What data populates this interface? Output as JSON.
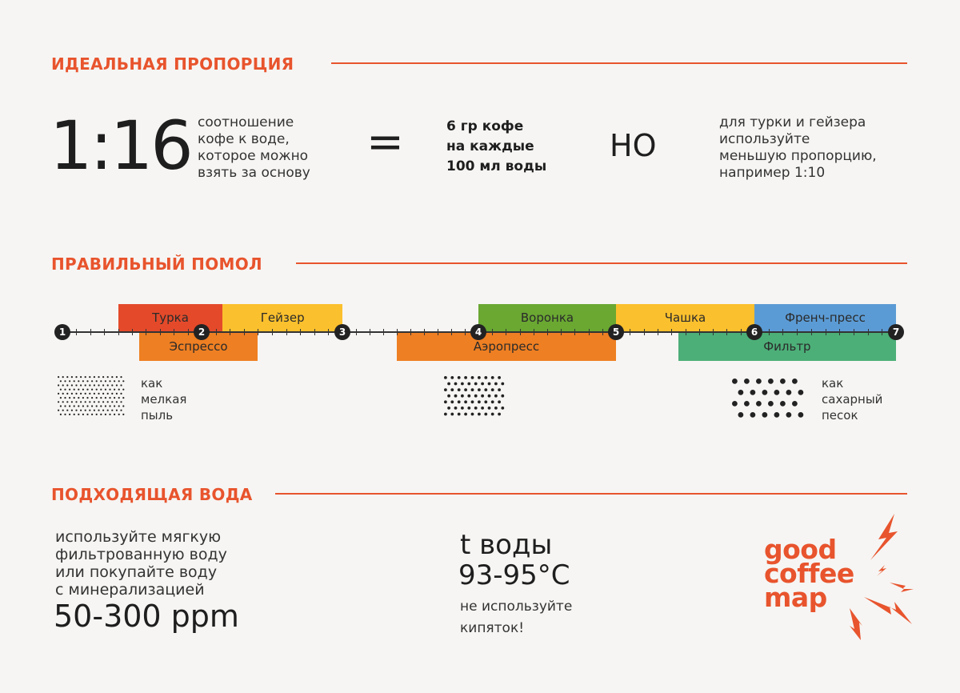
{
  "proportion": {
    "title": "ИДЕАЛЬНАЯ ПРОПОРЦИЯ",
    "ratio": "1:16",
    "ratio_desc": [
      "соотношение",
      "кофе к воде,",
      "которое можно",
      "взять за основу"
    ],
    "equals": "=",
    "amount": [
      "6 гр кофе",
      "на каждые",
      "100 мл воды"
    ],
    "but": "НО",
    "note": [
      "для турки и гейзера",
      "используйте",
      "меньшую пропорцию,",
      "например 1:10"
    ]
  },
  "grind": {
    "title": "ПРАВИЛЬНЫЙ ПОМОЛ",
    "scale": [
      "1",
      "2",
      "3",
      "4",
      "5",
      "6",
      "7"
    ],
    "methods": [
      {
        "label": "Турка",
        "from": 1.4,
        "to": 2.15,
        "row": "top",
        "color": "#e44a2a"
      },
      {
        "label": "Гейзер",
        "from": 2.15,
        "to": 3.0,
        "row": "top",
        "color": "#fbc02d"
      },
      {
        "label": "Эспрессо",
        "from": 1.55,
        "to": 2.4,
        "row": "bottom",
        "color": "#ee7f22"
      },
      {
        "label": "Аэропресс",
        "from": 3.4,
        "to": 5.0,
        "row": "bottom",
        "color": "#ee7f22"
      },
      {
        "label": "Воронка",
        "from": 4.0,
        "to": 5.0,
        "row": "top",
        "color": "#6aa832"
      },
      {
        "label": "Чашка",
        "from": 5.0,
        "to": 6.0,
        "row": "top",
        "color": "#fbc02d"
      },
      {
        "label": "Френч-пресс",
        "from": 6.0,
        "to": 7.0,
        "row": "top",
        "color": "#5b9bd5"
      },
      {
        "label": "Фильтр",
        "from": 5.45,
        "to": 7.0,
        "row": "bottom",
        "color": "#4caf78"
      }
    ],
    "fine_label": [
      "как",
      "мелкая",
      "пыль"
    ],
    "coarse_label": [
      "как",
      "сахарный",
      "песок"
    ]
  },
  "water": {
    "title": "ПОДХОДЯЩАЯ ВОДА",
    "advice": [
      "используйте мягкую",
      "фильтрованную воду",
      "или покупайте воду",
      "с минерализацией"
    ],
    "ppm": "50-300 ppm",
    "temp_title": "t воды",
    "temp": "93-95°C",
    "temp_note": [
      "не используйте",
      "кипяток!"
    ]
  },
  "logo": {
    "lines": [
      "good",
      "coffee",
      "map"
    ],
    "color": "#e8542d"
  }
}
